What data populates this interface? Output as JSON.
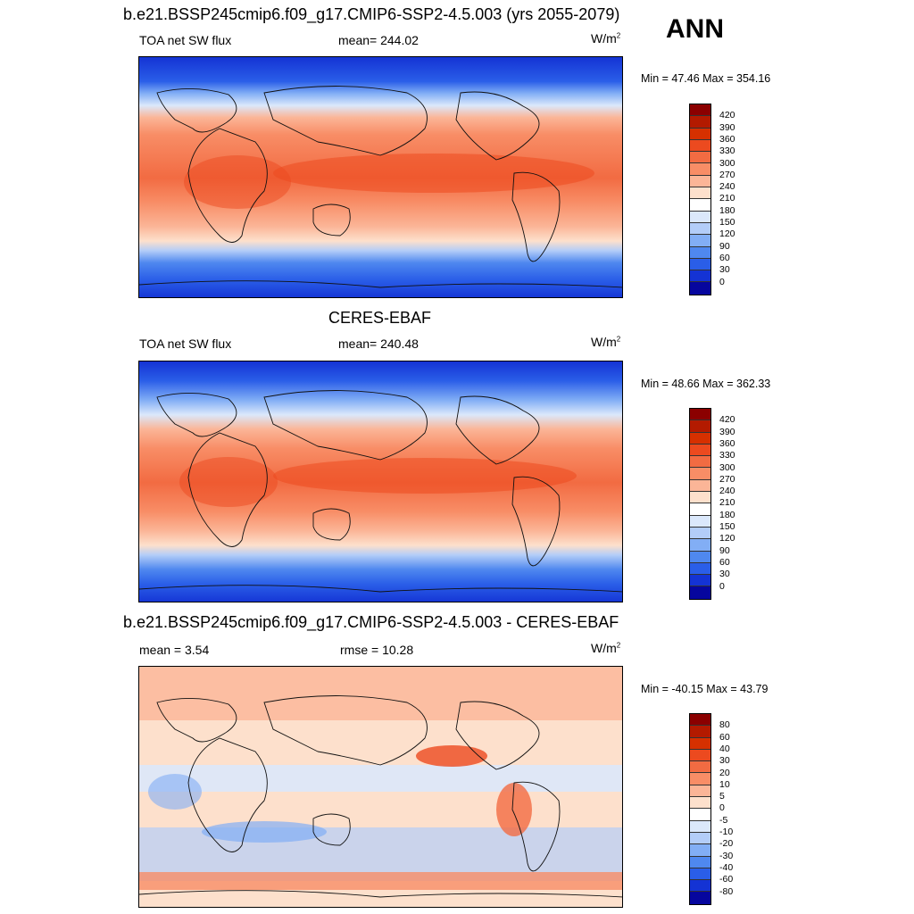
{
  "season": "ANN",
  "panels": [
    {
      "title": "b.e21.BSSP245cmip6.f09_g17.CMIP6-SSP2-4.5.003 (yrs 2055-2079)",
      "left_label": "TOA net SW flux",
      "center_label": "mean= 244.02",
      "units_base": "W/m",
      "units_sup": "2",
      "minmax": "Min =  47.46 Max = 354.16",
      "levels": [
        "420",
        "390",
        "360",
        "330",
        "300",
        "270",
        "240",
        "210",
        "180",
        "150",
        "120",
        "90",
        "60",
        "30",
        "0"
      ]
    },
    {
      "title": "CERES-EBAF",
      "left_label": "TOA net SW flux",
      "center_label": "mean= 240.48",
      "units_base": "W/m",
      "units_sup": "2",
      "minmax": "Min =  48.66 Max = 362.33",
      "levels": [
        "420",
        "390",
        "360",
        "330",
        "300",
        "270",
        "240",
        "210",
        "180",
        "150",
        "120",
        "90",
        "60",
        "30",
        "0"
      ]
    },
    {
      "title": "b.e21.BSSP245cmip6.f09_g17.CMIP6-SSP2-4.5.003 - CERES-EBAF",
      "left_label": "mean =   3.54",
      "center_label": "rmse =  10.28",
      "units_base": "W/m",
      "units_sup": "2",
      "minmax": "Min = -40.15 Max =  43.79",
      "levels": [
        "80",
        "60",
        "40",
        "30",
        "20",
        "10",
        "5",
        "0",
        "-5",
        "-10",
        "-20",
        "-30",
        "-40",
        "-60",
        "-80"
      ]
    }
  ],
  "colors": {
    "abs_scale": [
      "#8b0000",
      "#b31a00",
      "#d63000",
      "#ec4a1f",
      "#f26b42",
      "#f88d66",
      "#fbb597",
      "#fde0cc",
      "#ffffff",
      "#dbe8fb",
      "#b3cdf8",
      "#82aef5",
      "#4f88ef",
      "#2a5ee8",
      "#1433d4",
      "#06069e"
    ],
    "diff_scale": [
      "#8b0000",
      "#b31a00",
      "#d63000",
      "#ec4a1f",
      "#f26b42",
      "#f88d66",
      "#fbb597",
      "#fde0cc",
      "#ffffff",
      "#dbe8fb",
      "#b3cdf8",
      "#82aef5",
      "#4f88ef",
      "#2a5ee8",
      "#1433d4",
      "#06069e"
    ]
  },
  "chart_data": [
    {
      "type": "heatmap",
      "title": "b.e21.BSSP245cmip6.f09_g17.CMIP6-SSP2-4.5.003 (yrs 2055-2079)",
      "variable": "TOA net SW flux",
      "units": "W/m2",
      "mean": 244.02,
      "min": 47.46,
      "max": 354.16,
      "contour_levels": [
        0,
        30,
        60,
        90,
        120,
        150,
        180,
        210,
        240,
        270,
        300,
        330,
        360,
        390,
        420
      ]
    },
    {
      "type": "heatmap",
      "title": "CERES-EBAF",
      "variable": "TOA net SW flux",
      "units": "W/m2",
      "mean": 240.48,
      "min": 48.66,
      "max": 362.33,
      "contour_levels": [
        0,
        30,
        60,
        90,
        120,
        150,
        180,
        210,
        240,
        270,
        300,
        330,
        360,
        390,
        420
      ]
    },
    {
      "type": "heatmap",
      "title": "b.e21.BSSP245cmip6.f09_g17.CMIP6-SSP2-4.5.003 - CERES-EBAF",
      "units": "W/m2",
      "mean": 3.54,
      "rmse": 10.28,
      "min": -40.15,
      "max": 43.79,
      "contour_levels": [
        -80,
        -60,
        -40,
        -30,
        -20,
        -10,
        -5,
        0,
        5,
        10,
        20,
        30,
        40,
        60,
        80
      ]
    }
  ]
}
